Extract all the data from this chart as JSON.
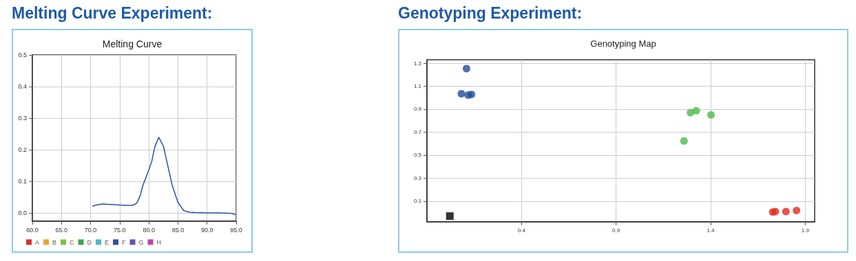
{
  "chart_data": [
    {
      "type": "line",
      "title": "Melting Curve Experiment:",
      "subtitle": "Melting Curve",
      "xlim": [
        60,
        95
      ],
      "ylim": [
        -0.025,
        0.5
      ],
      "xticks": [
        {
          "value": 60,
          "label": "60.0"
        },
        {
          "value": 65,
          "label": "65.0"
        },
        {
          "value": 70,
          "label": "70.0"
        },
        {
          "value": 75,
          "label": "75.0"
        },
        {
          "value": 80,
          "label": "80.0"
        },
        {
          "value": 85,
          "label": "85.0"
        },
        {
          "value": 90,
          "label": "90.0"
        },
        {
          "value": 95,
          "label": "95.0"
        }
      ],
      "yticks": [
        {
          "value": 0,
          "label": "0.0"
        },
        0.1,
        0.2,
        0.3,
        0.4,
        0.5
      ],
      "grid": true,
      "legend": "bottom left",
      "line_style": "solid",
      "x": [
        70.3,
        71,
        72,
        73,
        74,
        75,
        76,
        77,
        77.5,
        78,
        78.5,
        79,
        80,
        80.5,
        81,
        81.7,
        82.5,
        83,
        84,
        85,
        86,
        87,
        88,
        90,
        92,
        94,
        95
      ],
      "series": [
        {
          "name": "A",
          "color": "#d9312b",
          "values": [
            null,
            null,
            null,
            null,
            null,
            null,
            null,
            null,
            null,
            null,
            null,
            null,
            null,
            null,
            null,
            null,
            null,
            null,
            null,
            null,
            null,
            null,
            null,
            null,
            null,
            null,
            null
          ]
        },
        {
          "name": "B",
          "color": "#e8a33a",
          "values": [
            null,
            null,
            null,
            null,
            null,
            null,
            null,
            null,
            null,
            null,
            null,
            null,
            null,
            null,
            null,
            null,
            null,
            null,
            null,
            null,
            null,
            null,
            null,
            null,
            null,
            null,
            null
          ]
        },
        {
          "name": "C",
          "color": "#7cc242",
          "values": [
            null,
            null,
            null,
            null,
            null,
            null,
            null,
            null,
            null,
            null,
            null,
            null,
            null,
            null,
            null,
            null,
            null,
            null,
            null,
            null,
            null,
            null,
            null,
            null,
            null,
            null,
            null
          ]
        },
        {
          "name": "D",
          "color": "#3aa84a",
          "values": [
            null,
            null,
            null,
            null,
            null,
            null,
            null,
            null,
            null,
            null,
            null,
            null,
            null,
            null,
            null,
            null,
            null,
            null,
            null,
            null,
            null,
            null,
            null,
            null,
            null,
            null,
            null
          ]
        },
        {
          "name": "E",
          "color": "#4bb8c8",
          "values": [
            null,
            null,
            null,
            null,
            null,
            null,
            null,
            null,
            null,
            null,
            null,
            null,
            null,
            null,
            null,
            null,
            null,
            null,
            null,
            null,
            null,
            null,
            null,
            null,
            null,
            null,
            null
          ]
        },
        {
          "name": "F",
          "color": "#2a52a0",
          "values": [
            0.022,
            0.026,
            0.029,
            0.028,
            0.027,
            0.026,
            0.025,
            0.025,
            0.027,
            0.034,
            0.055,
            0.089,
            0.137,
            0.164,
            0.208,
            0.24,
            0.212,
            0.171,
            0.089,
            0.034,
            0.008,
            0.003,
            0.002,
            0.001,
            0.001,
            0.0,
            -0.004
          ]
        },
        {
          "name": "G",
          "color": "#6a50b0",
          "values": [
            null,
            null,
            null,
            null,
            null,
            null,
            null,
            null,
            null,
            null,
            null,
            null,
            null,
            null,
            null,
            null,
            null,
            null,
            null,
            null,
            null,
            null,
            null,
            null,
            null,
            null,
            null
          ]
        },
        {
          "name": "H",
          "color": "#c040b0",
          "values": [
            null,
            null,
            null,
            null,
            null,
            null,
            null,
            null,
            null,
            null,
            null,
            null,
            null,
            null,
            null,
            null,
            null,
            null,
            null,
            null,
            null,
            null,
            null,
            null,
            null,
            null,
            null
          ]
        }
      ]
    },
    {
      "type": "scatter",
      "title": "Genotyping Experiment:",
      "subtitle": "Genotyping Map",
      "xlim": [
        -0.1,
        1.95
      ],
      "ylim": [
        -0.08,
        1.33
      ],
      "xticks": [
        0.4,
        0.9,
        1.4,
        1.9
      ],
      "yticks": [
        0.1,
        0.3,
        0.5,
        0.7,
        0.9,
        1.1,
        1.3
      ],
      "grid": true,
      "marker": "circle",
      "series": [
        {
          "color": "#1f4e9c",
          "x": [
            0.109,
            0.082,
            0.118,
            0.135
          ],
          "values": [
            1.253,
            1.035,
            1.023,
            1.029
          ]
        },
        {
          "color": "#4cbb47",
          "x": [
            1.293,
            1.324,
            1.402,
            1.259
          ],
          "values": [
            0.87,
            0.886,
            0.851,
            0.623
          ]
        },
        {
          "color": "#e02b20",
          "x": [
            1.728,
            1.742,
            1.798,
            1.854
          ],
          "values": [
            0.005,
            0.009,
            0.009,
            0.019
          ]
        },
        {
          "color": "#000000",
          "marker": "square",
          "x": [
            0.021
          ],
          "values": [
            -0.03
          ]
        }
      ]
    }
  ]
}
